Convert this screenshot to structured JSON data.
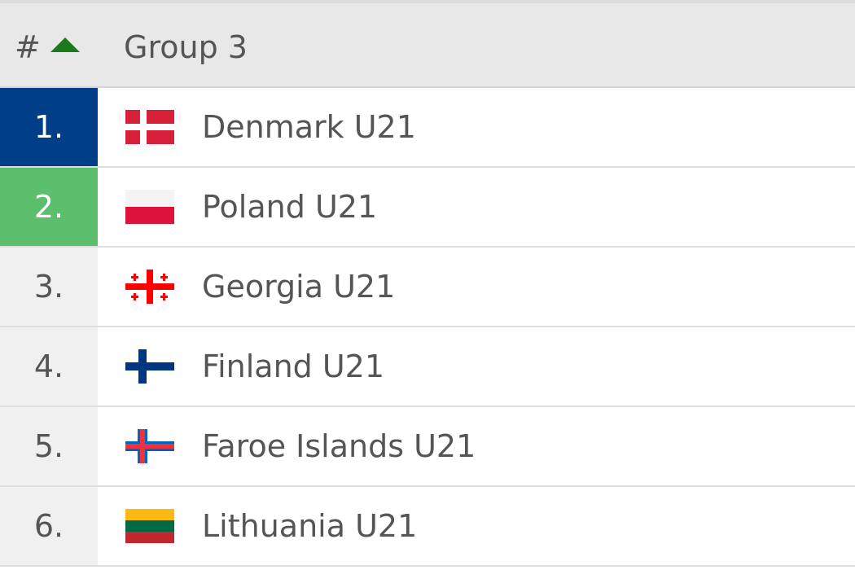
{
  "header": {
    "rank": "#",
    "group": "Group 3"
  },
  "rows": [
    {
      "rank": "1.",
      "team": "Denmark U21"
    },
    {
      "rank": "2.",
      "team": "Poland U21"
    },
    {
      "rank": "3.",
      "team": "Georgia U21"
    },
    {
      "rank": "4.",
      "team": "Finland U21"
    },
    {
      "rank": "5.",
      "team": "Faroe Islands U21"
    },
    {
      "rank": "6.",
      "team": "Lithuania U21"
    }
  ]
}
